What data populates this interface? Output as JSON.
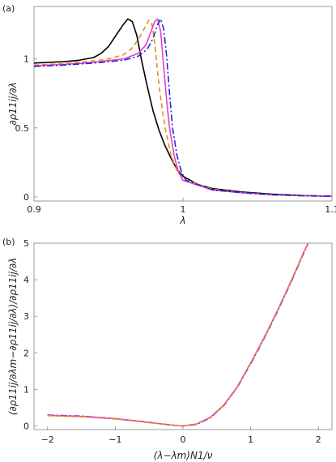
{
  "chart_data": [
    {
      "type": "line",
      "panel_label": "(a)",
      "xlabel": "λ",
      "ylabel": "∂ρ11ij/∂λ",
      "xlim": [
        0.9,
        1.1
      ],
      "ylim": [
        -0.03,
        1.38
      ],
      "xticks": [
        {
          "v": 0.9,
          "label": "0.9"
        },
        {
          "v": 1.0,
          "label": "1"
        },
        {
          "v": 1.1,
          "label": "1.1"
        }
      ],
      "yticks": [
        {
          "v": 0,
          "label": "0"
        },
        {
          "v": 0.5,
          "label": "0.5"
        },
        {
          "v": 1.0,
          "label": "1"
        }
      ],
      "grid": false,
      "series": [
        {
          "color": "#000000",
          "dash": "",
          "width": 1.6,
          "x": [
            0.9,
            0.91,
            0.92,
            0.93,
            0.94,
            0.945,
            0.95,
            0.955,
            0.96,
            0.963,
            0.966,
            0.969,
            0.972,
            0.975,
            0.978,
            0.98,
            0.984,
            0.988,
            0.992,
            0.996,
            1.0,
            1.01,
            1.02,
            1.04,
            1.06,
            1.08,
            1.1
          ],
          "y": [
            0.97,
            0.975,
            0.98,
            0.99,
            1.01,
            1.04,
            1.09,
            1.17,
            1.25,
            1.29,
            1.27,
            1.17,
            1.0,
            0.85,
            0.71,
            0.62,
            0.48,
            0.37,
            0.28,
            0.2,
            0.15,
            0.09,
            0.06,
            0.035,
            0.02,
            0.01,
            0.005
          ]
        },
        {
          "color": "#F08A1A",
          "dash": "6,4",
          "width": 1.6,
          "x": [
            0.9,
            0.92,
            0.94,
            0.95,
            0.96,
            0.965,
            0.97,
            0.974,
            0.977,
            0.979,
            0.981,
            0.983,
            0.985,
            0.988,
            0.992,
            0.996,
            1.0,
            1.02,
            1.04,
            1.06,
            1.08,
            1.1
          ],
          "y": [
            0.955,
            0.965,
            0.985,
            1.0,
            1.03,
            1.07,
            1.14,
            1.22,
            1.28,
            1.26,
            1.12,
            0.9,
            0.72,
            0.5,
            0.3,
            0.19,
            0.13,
            0.055,
            0.03,
            0.015,
            0.008,
            0.004
          ]
        },
        {
          "color": "#E83FC6",
          "dash": "",
          "width": 1.6,
          "x": [
            0.9,
            0.92,
            0.94,
            0.96,
            0.97,
            0.975,
            0.978,
            0.981,
            0.983,
            0.985,
            0.987,
            0.989,
            0.991,
            0.994,
            0.997,
            1.0,
            1.02,
            1.04,
            1.06,
            1.08,
            1.1
          ],
          "y": [
            0.95,
            0.96,
            0.975,
            1.0,
            1.04,
            1.1,
            1.18,
            1.27,
            1.29,
            1.2,
            0.95,
            0.7,
            0.5,
            0.3,
            0.18,
            0.12,
            0.05,
            0.03,
            0.015,
            0.008,
            0.004
          ]
        },
        {
          "color": "#1C2BD6",
          "dash": "8,3,2,3",
          "width": 1.6,
          "x": [
            0.9,
            0.92,
            0.94,
            0.96,
            0.97,
            0.976,
            0.98,
            0.983,
            0.985,
            0.987,
            0.989,
            0.991,
            0.993,
            0.996,
            0.999,
            1.002,
            1.02,
            1.04,
            1.06,
            1.08,
            1.1
          ],
          "y": [
            0.945,
            0.955,
            0.97,
            0.99,
            1.02,
            1.07,
            1.15,
            1.25,
            1.29,
            1.22,
            1.02,
            0.75,
            0.5,
            0.3,
            0.18,
            0.12,
            0.05,
            0.03,
            0.015,
            0.008,
            0.004
          ]
        }
      ]
    },
    {
      "type": "line",
      "panel_label": "(b)",
      "xlabel": "(λ−λm)N1/ν",
      "ylabel": "(∂ρ11ij/∂λm−∂ρ11ij/∂λ)/∂ρ11ij/∂λ",
      "xlim": [
        -2.2,
        2.2
      ],
      "ylim": [
        -0.1,
        5.0
      ],
      "xticks": [
        {
          "v": -2,
          "label": "−2"
        },
        {
          "v": -1,
          "label": "−1"
        },
        {
          "v": 0,
          "label": "0"
        },
        {
          "v": 1,
          "label": "1"
        },
        {
          "v": 2,
          "label": "2"
        }
      ],
      "yticks": [
        {
          "v": 0,
          "label": "0"
        },
        {
          "v": 1,
          "label": "1"
        },
        {
          "v": 2,
          "label": "2"
        },
        {
          "v": 3,
          "label": "3"
        },
        {
          "v": 4,
          "label": "4"
        },
        {
          "v": 5,
          "label": "5"
        }
      ],
      "grid": false,
      "series": [
        {
          "color": "#1C2BD6",
          "dash": "8,3,2,3",
          "width": 1.6,
          "x": [
            -2,
            -1.5,
            -1,
            -0.6,
            -0.3,
            -0.1,
            0,
            0.2,
            0.4,
            0.6,
            0.8,
            1.0,
            1.2,
            1.4,
            1.6,
            1.8,
            1.85
          ],
          "y": [
            0.3,
            0.27,
            0.2,
            0.12,
            0.05,
            0.01,
            0.0,
            0.04,
            0.22,
            0.55,
            1.05,
            1.7,
            2.4,
            3.15,
            3.95,
            4.8,
            5.0
          ]
        },
        {
          "color": "#E83FC6",
          "dash": "",
          "width": 1.6,
          "x": [
            -2,
            -1.5,
            -1,
            -0.6,
            -0.3,
            -0.1,
            0,
            0.2,
            0.4,
            0.6,
            0.8,
            1.0,
            1.2,
            1.4,
            1.6,
            1.8,
            1.85
          ],
          "y": [
            0.29,
            0.26,
            0.2,
            0.12,
            0.05,
            0.01,
            0.0,
            0.05,
            0.23,
            0.56,
            1.06,
            1.72,
            2.42,
            3.17,
            3.97,
            4.82,
            5.0
          ]
        },
        {
          "color": "#F08A1A",
          "dash": "6,4",
          "width": 1.6,
          "x": [
            -2,
            -1.5,
            -1,
            -0.6,
            -0.3,
            -0.1,
            0,
            0.2,
            0.4,
            0.6,
            0.8,
            1.0,
            1.2,
            1.4,
            1.6,
            1.8,
            1.85
          ],
          "y": [
            0.28,
            0.25,
            0.19,
            0.11,
            0.05,
            0.01,
            0.0,
            0.05,
            0.24,
            0.57,
            1.07,
            1.73,
            2.43,
            3.18,
            3.98,
            4.83,
            5.0
          ]
        }
      ]
    }
  ]
}
